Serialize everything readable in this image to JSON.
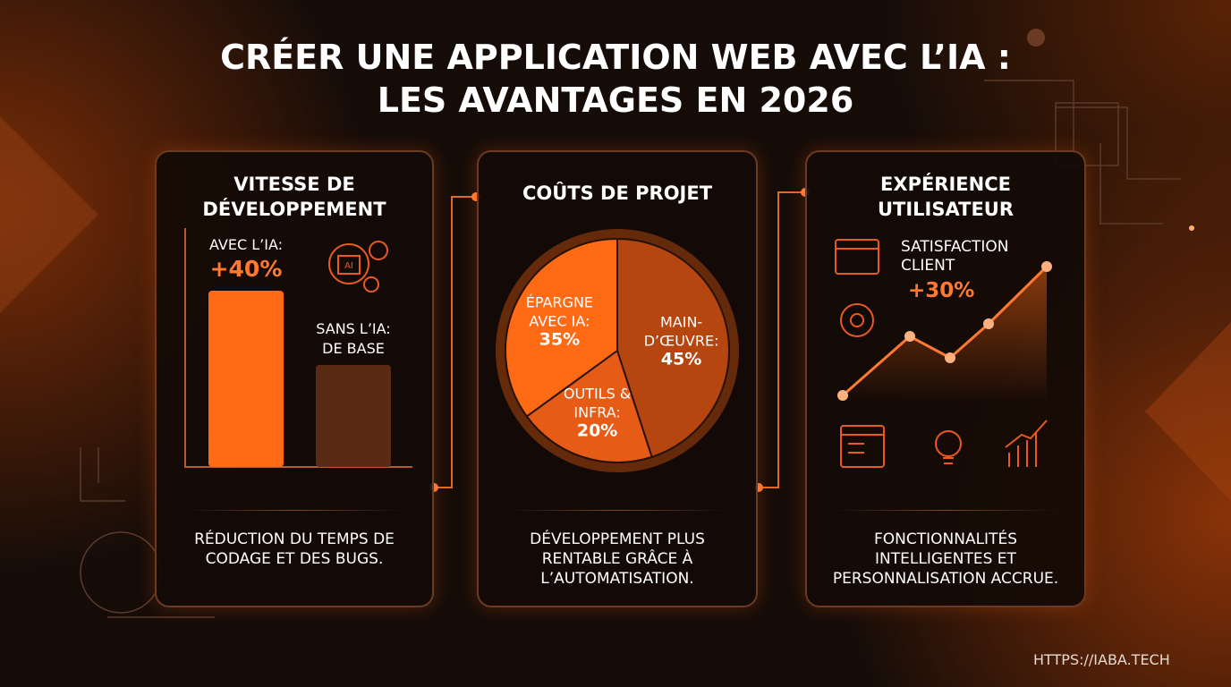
{
  "header": {
    "title_lines": [
      "CRÉER UNE APPLICATION WEB AVEC L’IA :",
      "LES AVANTAGES EN 2026"
    ]
  },
  "panels": [
    {
      "title_lines": [
        "VITESSE DE",
        "DÉVELOPPEMENT"
      ],
      "labels": {
        "ai_name": "AVEC L’IA:",
        "ai_value": "+40%",
        "base_name": "SANS L’IA:",
        "base_value": "DE BASE",
        "chip": "AI"
      },
      "caption_lines": [
        "RÉDUCTION DU TEMPS DE",
        "CODAGE ET DES BUGS."
      ]
    },
    {
      "title_lines": [
        "COÛTS DE PROJET"
      ],
      "caption_lines": [
        "DÉVELOPPEMENT PLUS",
        "RENTABLE GRÂCE À",
        "L’AUTOMATISATION."
      ]
    },
    {
      "title_lines": [
        "EXPÉRIENCE",
        "UTILISATEUR"
      ],
      "labels": {
        "metric_lines": [
          "SATISFACTION",
          "CLIENT"
        ],
        "metric_value": "+30%"
      },
      "caption_lines": [
        "FONCTIONNALITÉS",
        "INTELLIGENTES ET",
        "PERSONNALISATION ACCRUE."
      ]
    }
  ],
  "chart_data": {
    "type": "pie",
    "categories": [
      "MAIN-D’ŒUVRE:",
      "OUTILS & INFRA:",
      "ÉPARGNE AVEC IA:"
    ],
    "values": [
      45,
      20,
      35
    ],
    "value_labels": [
      "45%",
      "20%",
      "35%"
    ],
    "colors": [
      "#b5460f",
      "#e65c17",
      "#ff6a14"
    ]
  },
  "footer": {
    "url": "HTTPS://IABA.TECH"
  }
}
